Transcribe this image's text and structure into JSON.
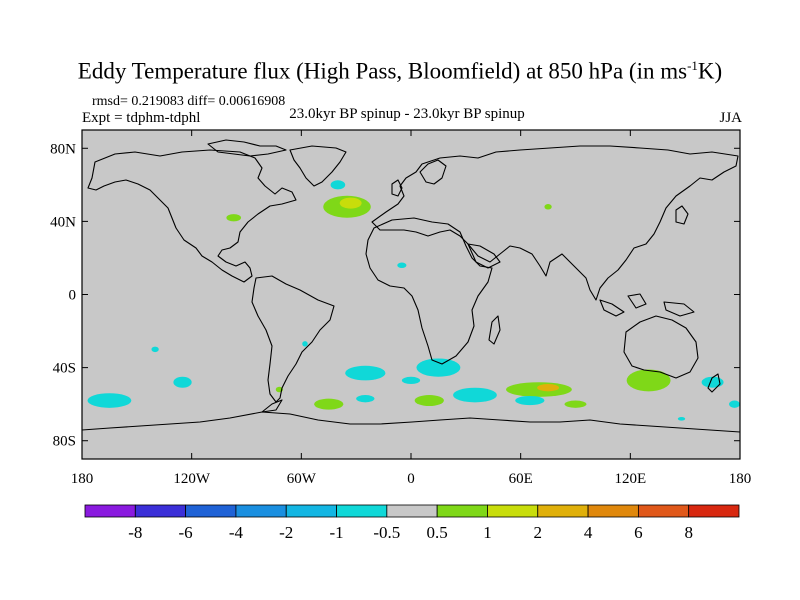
{
  "chart_data": {
    "type": "heatmap",
    "title_main": "Eddy Temperature flux (High Pass, Bloomfield) at 850 hPa (in ms",
    "title_sup": "-1",
    "title_end": "K)",
    "stats_text": "rmsd= 0.219083 diff= 0.00616908",
    "expt_text": "Expt = tdphm-tdphl",
    "center_label": "23.0kyr BP spinup - 23.0kyr BP spinup",
    "season": "JJA",
    "xlim": [
      -180,
      180
    ],
    "ylim": [
      -90,
      90
    ],
    "x_ticks": [
      {
        "value": -180,
        "label": "180"
      },
      {
        "value": -120,
        "label": "120W"
      },
      {
        "value": -60,
        "label": "60W"
      },
      {
        "value": 0,
        "label": "0"
      },
      {
        "value": 60,
        "label": "60E"
      },
      {
        "value": 120,
        "label": "120E"
      },
      {
        "value": 180,
        "label": "180"
      }
    ],
    "y_ticks": [
      {
        "value": 80,
        "label": "80N"
      },
      {
        "value": 40,
        "label": "40N"
      },
      {
        "value": 0,
        "label": "0"
      },
      {
        "value": -40,
        "label": "40S"
      },
      {
        "value": -80,
        "label": "80S"
      }
    ],
    "colorbar": {
      "colors": [
        "#8a1adf",
        "#3b2fd8",
        "#1f62d6",
        "#1a8fe0",
        "#13b6e3",
        "#10d8d8",
        "#c8c8c8",
        "#7fd818",
        "#c8dd0b",
        "#e0b00a",
        "#e0880c",
        "#e0581a",
        "#d82810"
      ],
      "labels": [
        "-8",
        "-6",
        "-4",
        "-2",
        "-1",
        "-0.5",
        "0.5",
        "1",
        "2",
        "4",
        "6",
        "8"
      ]
    },
    "background_color": "#c8c8c8",
    "anomalies": [
      {
        "lon": -35,
        "lat": 48,
        "rlon": 13,
        "rlat": 6,
        "color": "#7fd818"
      },
      {
        "lon": -33,
        "lat": 50,
        "rlon": 6,
        "rlat": 3,
        "color": "#c8dd0b"
      },
      {
        "lon": -40,
        "lat": 60,
        "rlon": 4,
        "rlat": 2.5,
        "color": "#10d8d8"
      },
      {
        "lon": -97,
        "lat": 42,
        "rlon": 4,
        "rlat": 2,
        "color": "#7fd818"
      },
      {
        "lon": 75,
        "lat": 48,
        "rlon": 2,
        "rlat": 1.5,
        "color": "#7fd818"
      },
      {
        "lon": -5,
        "lat": 16,
        "rlon": 2.5,
        "rlat": 1.5,
        "color": "#10d8d8"
      },
      {
        "lon": -140,
        "lat": -30,
        "rlon": 2,
        "rlat": 1.5,
        "color": "#10d8d8"
      },
      {
        "lon": -58,
        "lat": -27,
        "rlon": 1.5,
        "rlat": 1.5,
        "color": "#10d8d8"
      },
      {
        "lon": 15,
        "lat": -40,
        "rlon": 12,
        "rlat": 5,
        "color": "#10d8d8"
      },
      {
        "lon": -25,
        "lat": -43,
        "rlon": 11,
        "rlat": 4,
        "color": "#10d8d8"
      },
      {
        "lon": 0,
        "lat": -47,
        "rlon": 5,
        "rlat": 2,
        "color": "#10d8d8"
      },
      {
        "lon": -125,
        "lat": -48,
        "rlon": 5,
        "rlat": 3,
        "color": "#10d8d8"
      },
      {
        "lon": -165,
        "lat": -58,
        "rlon": 12,
        "rlat": 4,
        "color": "#10d8d8"
      },
      {
        "lon": -45,
        "lat": -60,
        "rlon": 8,
        "rlat": 3,
        "color": "#7fd818"
      },
      {
        "lon": -25,
        "lat": -57,
        "rlon": 5,
        "rlat": 2,
        "color": "#10d8d8"
      },
      {
        "lon": 10,
        "lat": -58,
        "rlon": 8,
        "rlat": 3,
        "color": "#7fd818"
      },
      {
        "lon": 35,
        "lat": -55,
        "rlon": 12,
        "rlat": 4,
        "color": "#10d8d8"
      },
      {
        "lon": 70,
        "lat": -52,
        "rlon": 18,
        "rlat": 4,
        "color": "#7fd818"
      },
      {
        "lon": 75,
        "lat": -51,
        "rlon": 6,
        "rlat": 2,
        "color": "#e0b00a"
      },
      {
        "lon": 65,
        "lat": -58,
        "rlon": 8,
        "rlat": 2.5,
        "color": "#10d8d8"
      },
      {
        "lon": 90,
        "lat": -60,
        "rlon": 6,
        "rlat": 2,
        "color": "#7fd818"
      },
      {
        "lon": 130,
        "lat": -47,
        "rlon": 12,
        "rlat": 6,
        "color": "#7fd818"
      },
      {
        "lon": 165,
        "lat": -48,
        "rlon": 6,
        "rlat": 3,
        "color": "#10d8d8"
      },
      {
        "lon": 177,
        "lat": -60,
        "rlon": 3,
        "rlat": 2,
        "color": "#10d8d8"
      },
      {
        "lon": -72,
        "lat": -52,
        "rlon": 2,
        "rlat": 1.5,
        "color": "#7fd818"
      },
      {
        "lon": 148,
        "lat": -68,
        "rlon": 2,
        "rlat": 1,
        "color": "#10d8d8"
      }
    ]
  }
}
